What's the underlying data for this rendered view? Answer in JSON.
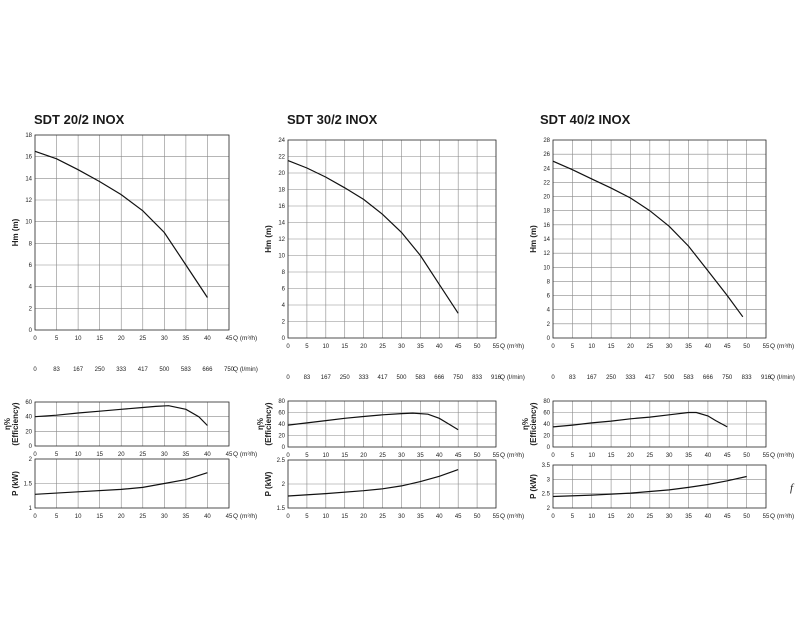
{
  "chart_data": [
    {
      "type": "line",
      "title": "SDT 20/2 INOX",
      "x_label": "Q (m³/h)",
      "x2_label": "Q (l/min)",
      "x_ticks": [
        0,
        5,
        10,
        15,
        20,
        25,
        30,
        35,
        40,
        45
      ],
      "x2_ticks": [
        "0",
        "83",
        "167",
        "250",
        "333",
        "417",
        "500",
        "583",
        "666",
        "750"
      ],
      "xlim": [
        0,
        45
      ],
      "head": {
        "ylabel": "Hm (m)",
        "ylim": [
          0,
          18
        ],
        "yticks": [
          0,
          2,
          4,
          6,
          8,
          10,
          12,
          14,
          16,
          18
        ],
        "x": [
          0,
          5,
          10,
          15,
          20,
          25,
          30,
          35,
          40
        ],
        "y": [
          16.5,
          15.8,
          14.8,
          13.7,
          12.5,
          11,
          9,
          6,
          3
        ]
      },
      "efficiency": {
        "ylabel": "η%",
        "ylabel2": "(Efficiency)",
        "ylim": [
          0,
          60
        ],
        "yticks": [
          0,
          20,
          40,
          60
        ],
        "x": [
          0,
          5,
          10,
          15,
          20,
          25,
          28,
          31,
          35,
          38,
          40
        ],
        "y": [
          40,
          42,
          45,
          47.5,
          50,
          52.5,
          54,
          55,
          50,
          40,
          28
        ]
      },
      "power": {
        "ylabel": "P (kW)",
        "ylim": [
          1,
          2
        ],
        "yticks": [
          "1",
          "1.5",
          "2"
        ],
        "x": [
          0,
          10,
          20,
          25,
          30,
          35,
          40
        ],
        "y": [
          1.28,
          1.33,
          1.38,
          1.42,
          1.5,
          1.58,
          1.72
        ]
      }
    },
    {
      "type": "line",
      "title": "SDT 30/2 INOX",
      "x_label": "Q (m³/h)",
      "x2_label": "Q (l/min)",
      "x_ticks": [
        0,
        5,
        10,
        15,
        20,
        25,
        30,
        35,
        40,
        45,
        50,
        55
      ],
      "x2_ticks": [
        "0",
        "83",
        "167",
        "250",
        "333",
        "417",
        "500",
        "583",
        "666",
        "750",
        "833",
        "916"
      ],
      "xlim": [
        0,
        55
      ],
      "head": {
        "ylabel": "Hm (m)",
        "ylim": [
          0,
          24
        ],
        "yticks": [
          0,
          2,
          4,
          6,
          8,
          10,
          12,
          14,
          16,
          18,
          20,
          22,
          24
        ],
        "x": [
          0,
          5,
          10,
          15,
          20,
          25,
          30,
          35,
          40,
          45
        ],
        "y": [
          21.5,
          20.6,
          19.5,
          18.2,
          16.8,
          15,
          12.8,
          10,
          6.5,
          3
        ]
      },
      "efficiency": {
        "ylabel": "η%",
        "ylabel2": "(Efficiency)",
        "ylim": [
          0,
          80
        ],
        "yticks": [
          0,
          20,
          40,
          60,
          80
        ],
        "x": [
          0,
          5,
          10,
          15,
          20,
          25,
          30,
          33,
          37,
          40,
          43,
          45
        ],
        "y": [
          38,
          42,
          46,
          50,
          53,
          56,
          58,
          59,
          57,
          50,
          38,
          30
        ]
      },
      "power": {
        "ylabel": "P (kW)",
        "ylim": [
          1.5,
          2.5
        ],
        "yticks": [
          "1.5",
          "2",
          "2.5"
        ],
        "x": [
          0,
          10,
          20,
          25,
          30,
          35,
          40,
          45
        ],
        "y": [
          1.75,
          1.8,
          1.86,
          1.9,
          1.96,
          2.05,
          2.16,
          2.3
        ]
      }
    },
    {
      "type": "line",
      "title": "SDT 40/2 INOX",
      "x_label": "Q (m³/h)",
      "x2_label": "Q (l/min)",
      "x_ticks": [
        0,
        5,
        10,
        15,
        20,
        25,
        30,
        35,
        40,
        45,
        50,
        55
      ],
      "x2_ticks": [
        "0",
        "83",
        "167",
        "250",
        "333",
        "417",
        "500",
        "583",
        "666",
        "750",
        "833",
        "916"
      ],
      "xlim": [
        0,
        55
      ],
      "head": {
        "ylabel": "Hm (m)",
        "ylim": [
          0,
          28
        ],
        "yticks": [
          0,
          2,
          4,
          6,
          8,
          10,
          12,
          14,
          16,
          18,
          20,
          22,
          24,
          26,
          28
        ],
        "x": [
          0,
          5,
          10,
          15,
          20,
          25,
          30,
          35,
          40,
          45,
          49
        ],
        "y": [
          25,
          23.8,
          22.5,
          21.2,
          19.8,
          18,
          15.8,
          13,
          9.5,
          6,
          3
        ]
      },
      "efficiency": {
        "ylabel": "η%",
        "ylabel2": "(Efficiency)",
        "ylim": [
          0,
          80
        ],
        "yticks": [
          0,
          20,
          40,
          60,
          80
        ],
        "x": [
          0,
          5,
          10,
          15,
          20,
          25,
          30,
          35,
          37,
          40,
          42,
          45
        ],
        "y": [
          35,
          38,
          42,
          45,
          49,
          52,
          56,
          60,
          60,
          54,
          46,
          35
        ]
      },
      "power": {
        "ylabel": "P (kW)",
        "ylim": [
          2,
          3.5
        ],
        "yticks": [
          "2",
          "2.5",
          "3",
          "3.5"
        ],
        "x": [
          0,
          10,
          20,
          30,
          35,
          40,
          45,
          50
        ],
        "y": [
          2.4,
          2.45,
          2.52,
          2.63,
          2.72,
          2.82,
          2.95,
          3.1
        ]
      }
    }
  ],
  "stray_mark": "f"
}
